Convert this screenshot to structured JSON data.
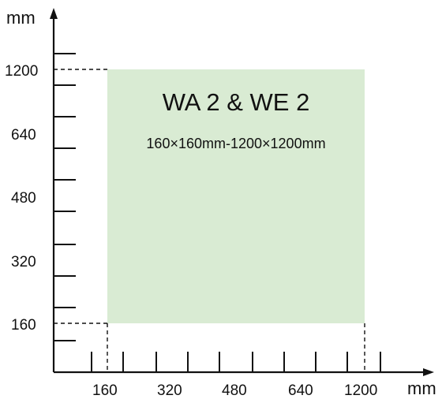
{
  "title": "WA 2 & WE 2",
  "subtitle": "160×160mm-1200×1200mm",
  "axes": {
    "x_unit": "mm",
    "y_unit": "mm",
    "x_ticks": [
      "160",
      "320",
      "480",
      "640",
      "1200"
    ],
    "y_ticks": [
      "1200",
      "640",
      "480",
      "320",
      "160"
    ]
  },
  "range": {
    "width_min": "160",
    "width_max": "1200",
    "height_min": "160",
    "height_max": "1200"
  },
  "colors": {
    "region_fill": "#d9ebd3",
    "axis": "#111111"
  }
}
